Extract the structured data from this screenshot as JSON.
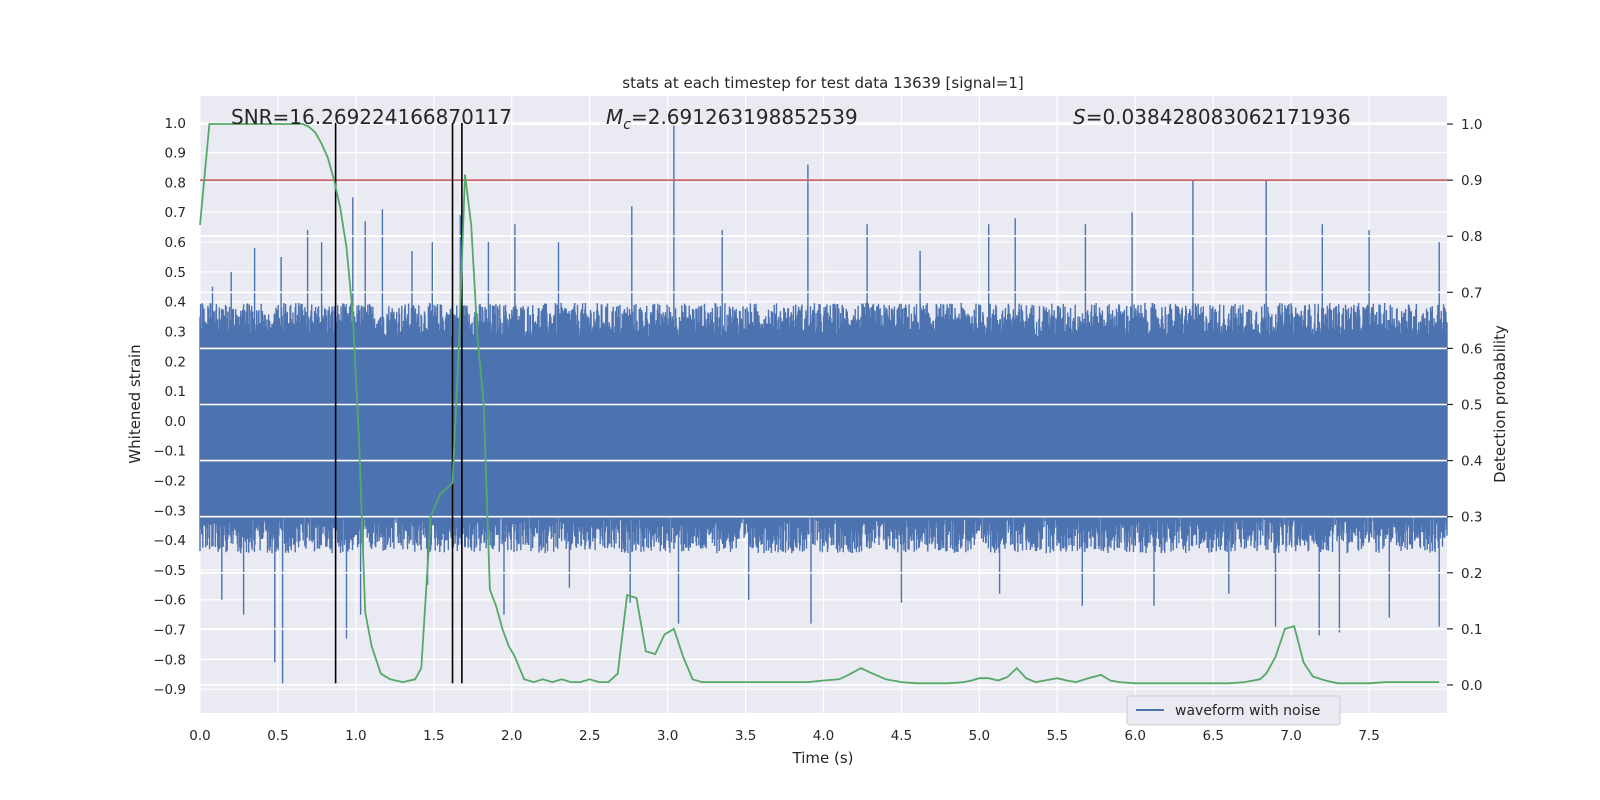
{
  "chart_data": {
    "type": "line",
    "title": "stats at each timestep for test data 13639 [signal=1]",
    "xlabel": "Time (s)",
    "ylabel": "Whitened strain",
    "ylabel_right": "Detection probability",
    "xlim": [
      0,
      8
    ],
    "ylim": [
      -0.98,
      1.09
    ],
    "ylim_right": [
      -0.05,
      1.05
    ],
    "x_ticks": [
      0.0,
      0.5,
      1.0,
      1.5,
      2.0,
      2.5,
      3.0,
      3.5,
      4.0,
      4.5,
      5.0,
      5.5,
      6.0,
      6.5,
      7.0,
      7.5
    ],
    "x_tick_labels": [
      "0.0",
      "0.5",
      "1.0",
      "1.5",
      "2.0",
      "2.5",
      "3.0",
      "3.5",
      "4.0",
      "4.5",
      "5.0",
      "5.5",
      "6.0",
      "6.5",
      "7.0",
      "7.5"
    ],
    "y_ticks": [
      1.0,
      0.9,
      0.8,
      0.7,
      0.6,
      0.5,
      0.4,
      0.3,
      0.2,
      0.1,
      0.0,
      -0.1,
      -0.2,
      -0.3,
      -0.4,
      -0.5,
      -0.6,
      -0.7,
      -0.8,
      -0.9
    ],
    "y_tick_labels": [
      "1.0",
      "0.9",
      "0.8",
      "0.7",
      "0.6",
      "0.5",
      "0.4",
      "0.3",
      "0.2",
      "0.1",
      "0.0",
      "−0.1",
      "−0.2",
      "−0.3",
      "−0.4",
      "−0.5",
      "−0.6",
      "−0.7",
      "−0.8",
      "−0.9"
    ],
    "y_right_ticks": [
      1.0,
      0.9,
      0.8,
      0.7,
      0.6,
      0.5,
      0.4,
      0.3,
      0.2,
      0.1,
      0.0
    ],
    "y_right_tick_labels": [
      "1.0",
      "0.9",
      "0.8",
      "0.7",
      "0.6",
      "0.5",
      "0.4",
      "0.3",
      "0.2",
      "0.1",
      "0.0"
    ],
    "annotations": {
      "snr": "SNR=16.269224166870117",
      "mc_symbol": "M",
      "mc_sub": "c",
      "mc_value": "=2.691263198852539",
      "s_symbol": "S",
      "s_value": "=0.038428083062171936"
    },
    "waveform": {
      "name": "waveform with noise",
      "color": "#4c72b0",
      "typical_envelope": [
        -0.37,
        0.33
      ],
      "peaks_up": [
        [
          0.08,
          0.45
        ],
        [
          0.2,
          0.5
        ],
        [
          0.35,
          0.58
        ],
        [
          0.52,
          0.55
        ],
        [
          0.69,
          0.64
        ],
        [
          0.78,
          0.6
        ],
        [
          0.98,
          0.75
        ],
        [
          1.06,
          0.67
        ],
        [
          1.17,
          0.71
        ],
        [
          1.36,
          0.57
        ],
        [
          1.49,
          0.6
        ],
        [
          1.67,
          0.69
        ],
        [
          1.85,
          0.6
        ],
        [
          2.02,
          0.66
        ],
        [
          2.3,
          0.6
        ],
        [
          2.77,
          0.72
        ],
        [
          3.04,
          0.99
        ],
        [
          3.35,
          0.64
        ],
        [
          3.9,
          0.86
        ],
        [
          4.28,
          0.66
        ],
        [
          4.62,
          0.57
        ],
        [
          5.06,
          0.66
        ],
        [
          5.23,
          0.68
        ],
        [
          5.68,
          0.66
        ],
        [
          5.98,
          0.7
        ],
        [
          6.37,
          0.81
        ],
        [
          6.84,
          0.81
        ],
        [
          7.2,
          0.66
        ],
        [
          7.5,
          0.64
        ],
        [
          7.95,
          0.6
        ]
      ],
      "peaks_down": [
        [
          0.14,
          -0.6
        ],
        [
          0.28,
          -0.65
        ],
        [
          0.48,
          -0.81
        ],
        [
          0.53,
          -0.88
        ],
        [
          0.94,
          -0.73
        ],
        [
          1.03,
          -0.65
        ],
        [
          1.46,
          -0.55
        ],
        [
          1.95,
          -0.65
        ],
        [
          2.37,
          -0.56
        ],
        [
          2.76,
          -0.61
        ],
        [
          3.07,
          -0.68
        ],
        [
          3.52,
          -0.6
        ],
        [
          3.92,
          -0.68
        ],
        [
          4.5,
          -0.61
        ],
        [
          5.13,
          -0.58
        ],
        [
          5.66,
          -0.62
        ],
        [
          6.12,
          -0.62
        ],
        [
          6.6,
          -0.58
        ],
        [
          6.9,
          -0.69
        ],
        [
          7.18,
          -0.72
        ],
        [
          7.31,
          -0.71
        ],
        [
          7.63,
          -0.66
        ],
        [
          7.95,
          -0.69
        ]
      ]
    },
    "probability": {
      "color": "#55a868",
      "x": [
        0.0,
        0.06,
        0.1,
        0.2,
        0.3,
        0.4,
        0.5,
        0.6,
        0.66,
        0.7,
        0.74,
        0.78,
        0.82,
        0.86,
        0.9,
        0.94,
        0.98,
        1.02,
        1.06,
        1.1,
        1.16,
        1.22,
        1.3,
        1.38,
        1.42,
        1.48,
        1.54,
        1.58,
        1.62,
        1.66,
        1.7,
        1.74,
        1.78,
        1.82,
        1.86,
        1.9,
        1.94,
        1.98,
        2.02,
        2.08,
        2.14,
        2.2,
        2.26,
        2.32,
        2.38,
        2.44,
        2.5,
        2.56,
        2.62,
        2.68,
        2.74,
        2.8,
        2.86,
        2.92,
        2.98,
        3.04,
        3.1,
        3.16,
        3.22,
        3.3,
        3.4,
        3.5,
        3.6,
        3.7,
        3.8,
        3.9,
        4.0,
        4.1,
        4.16,
        4.24,
        4.3,
        4.4,
        4.5,
        4.6,
        4.7,
        4.8,
        4.9,
        4.95,
        5.0,
        5.06,
        5.12,
        5.18,
        5.24,
        5.3,
        5.36,
        5.42,
        5.5,
        5.56,
        5.62,
        5.7,
        5.78,
        5.84,
        5.9,
        6.0,
        6.1,
        6.2,
        6.3,
        6.4,
        6.5,
        6.6,
        6.7,
        6.8,
        6.84,
        6.9,
        6.96,
        7.02,
        7.08,
        7.14,
        7.22,
        7.3,
        7.4,
        7.5,
        7.6,
        7.7,
        7.8,
        7.9,
        7.95
      ],
      "y": [
        0.82,
        1.0,
        1.0,
        1.0,
        1.0,
        1.0,
        1.0,
        1.0,
        1.0,
        0.995,
        0.985,
        0.965,
        0.94,
        0.9,
        0.85,
        0.78,
        0.66,
        0.44,
        0.13,
        0.07,
        0.02,
        0.01,
        0.005,
        0.01,
        0.03,
        0.3,
        0.34,
        0.35,
        0.36,
        0.6,
        0.91,
        0.82,
        0.62,
        0.5,
        0.17,
        0.14,
        0.1,
        0.07,
        0.05,
        0.01,
        0.005,
        0.01,
        0.005,
        0.01,
        0.005,
        0.005,
        0.01,
        0.005,
        0.005,
        0.02,
        0.16,
        0.155,
        0.06,
        0.055,
        0.09,
        0.1,
        0.05,
        0.01,
        0.005,
        0.005,
        0.005,
        0.005,
        0.005,
        0.005,
        0.005,
        0.005,
        0.008,
        0.01,
        0.018,
        0.03,
        0.022,
        0.01,
        0.005,
        0.003,
        0.003,
        0.003,
        0.005,
        0.008,
        0.012,
        0.012,
        0.008,
        0.014,
        0.03,
        0.012,
        0.005,
        0.008,
        0.012,
        0.008,
        0.005,
        0.012,
        0.018,
        0.008,
        0.005,
        0.003,
        0.003,
        0.003,
        0.003,
        0.003,
        0.003,
        0.003,
        0.005,
        0.01,
        0.02,
        0.05,
        0.1,
        0.105,
        0.04,
        0.015,
        0.008,
        0.003,
        0.003,
        0.003,
        0.005,
        0.005,
        0.005,
        0.005,
        0.005
      ]
    },
    "threshold": {
      "value": 0.9,
      "color": "#c44e52"
    },
    "vertical_lines": {
      "x": [
        0.87,
        1.62,
        1.68
      ],
      "top": 1.0,
      "bottom": -0.88,
      "color": "#000000"
    },
    "legend": {
      "position": "lower-right",
      "entries": [
        "waveform with noise"
      ]
    },
    "grid": true,
    "colors": {
      "plot_bg": "#eaeaf2",
      "grid": "#ffffff",
      "text": "#262626"
    }
  }
}
